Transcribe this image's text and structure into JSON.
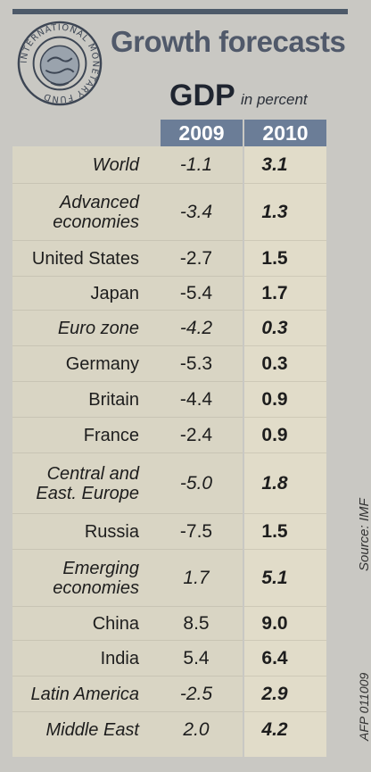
{
  "header": {
    "title": "Growth forecasts",
    "gdp": "GDP",
    "unit": "in percent",
    "years": [
      "2009",
      "2010"
    ],
    "seal_text": "INTERNATIONAL MONETARY FUND"
  },
  "side": {
    "source": "Source: IMF",
    "credit": "AFP 011009"
  },
  "chart_data": {
    "type": "table",
    "title": "Growth forecasts",
    "subtitle": "GDP in percent",
    "columns": [
      "2009",
      "2010"
    ],
    "rows": [
      {
        "label": "World",
        "v2009": "-1.1",
        "v2010": "3.1",
        "italic": true
      },
      {
        "label": "Advanced economies",
        "v2009": "-3.4",
        "v2010": "1.3",
        "italic": true
      },
      {
        "label": "United States",
        "v2009": "-2.7",
        "v2010": "1.5",
        "italic": false
      },
      {
        "label": "Japan",
        "v2009": "-5.4",
        "v2010": "1.7",
        "italic": false
      },
      {
        "label": "Euro zone",
        "v2009": "-4.2",
        "v2010": "0.3",
        "italic": true
      },
      {
        "label": "Germany",
        "v2009": "-5.3",
        "v2010": "0.3",
        "italic": false
      },
      {
        "label": "Britain",
        "v2009": "-4.4",
        "v2010": "0.9",
        "italic": false
      },
      {
        "label": "France",
        "v2009": "-2.4",
        "v2010": "0.9",
        "italic": false
      },
      {
        "label": "Central and East. Europe",
        "v2009": "-5.0",
        "v2010": "1.8",
        "italic": true
      },
      {
        "label": "Russia",
        "v2009": "-7.5",
        "v2010": "1.5",
        "italic": false
      },
      {
        "label": "Emerging economies",
        "v2009": "1.7",
        "v2010": "5.1",
        "italic": true
      },
      {
        "label": "China",
        "v2009": "8.5",
        "v2010": "9.0",
        "italic": false
      },
      {
        "label": "India",
        "v2009": "5.4",
        "v2010": "6.4",
        "italic": false
      },
      {
        "label": "Latin America",
        "v2009": "-2.5",
        "v2010": "2.9",
        "italic": true
      },
      {
        "label": "Middle East",
        "v2009": "2.0",
        "v2010": "4.2",
        "italic": true
      }
    ]
  }
}
